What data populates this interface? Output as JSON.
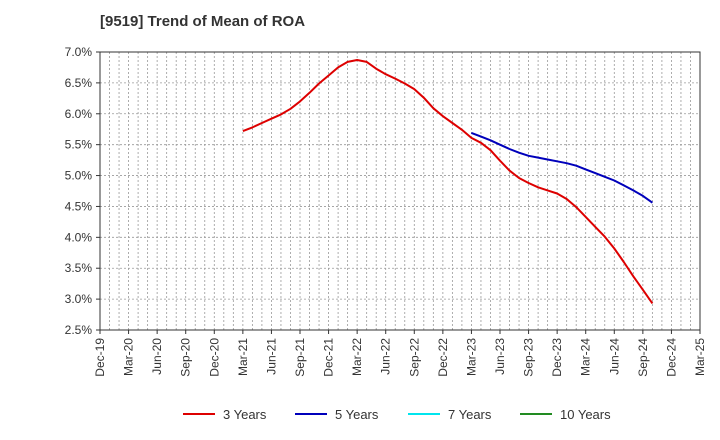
{
  "chart_data": {
    "type": "line",
    "title": "[9519]  Trend of Mean of ROA",
    "xlabel": "",
    "ylabel": "",
    "x_ticks": [
      "Dec-19",
      "Mar-20",
      "Jun-20",
      "Sep-20",
      "Dec-20",
      "Mar-21",
      "Jun-21",
      "Sep-21",
      "Dec-21",
      "Mar-22",
      "Jun-22",
      "Sep-22",
      "Dec-22",
      "Mar-23",
      "Jun-23",
      "Sep-23",
      "Dec-23",
      "Mar-24",
      "Jun-24",
      "Sep-24",
      "Dec-24",
      "Mar-25"
    ],
    "y_ticks": [
      "2.5%",
      "3.0%",
      "3.5%",
      "4.0%",
      "4.5%",
      "5.0%",
      "5.5%",
      "6.0%",
      "6.5%",
      "7.0%"
    ],
    "ylim": [
      2.5,
      7.0
    ],
    "grid": true,
    "legend_position": "bottom",
    "colors": {
      "3 Years": "#dd0000",
      "5 Years": "#0000bb",
      "7 Years": "#00e5ee",
      "10 Years": "#228b22"
    },
    "series": [
      {
        "name": "3 Years",
        "color": "#dd0000",
        "points": [
          [
            "Mar-21",
            5.72
          ],
          [
            "Apr-21",
            5.78
          ],
          [
            "May-21",
            5.85
          ],
          [
            "Jun-21",
            5.92
          ],
          [
            "Jul-21",
            5.99
          ],
          [
            "Aug-21",
            6.08
          ],
          [
            "Sep-21",
            6.2
          ],
          [
            "Oct-21",
            6.34
          ],
          [
            "Nov-21",
            6.49
          ],
          [
            "Dec-21",
            6.62
          ],
          [
            "Jan-22",
            6.75
          ],
          [
            "Feb-22",
            6.84
          ],
          [
            "Mar-22",
            6.87
          ],
          [
            "Apr-22",
            6.84
          ],
          [
            "May-22",
            6.73
          ],
          [
            "Jun-22",
            6.64
          ],
          [
            "Jul-22",
            6.57
          ],
          [
            "Aug-22",
            6.49
          ],
          [
            "Sep-22",
            6.4
          ],
          [
            "Oct-22",
            6.26
          ],
          [
            "Nov-22",
            6.09
          ],
          [
            "Dec-22",
            5.96
          ],
          [
            "Jan-23",
            5.85
          ],
          [
            "Feb-23",
            5.74
          ],
          [
            "Mar-23",
            5.61
          ],
          [
            "Apr-23",
            5.53
          ],
          [
            "May-23",
            5.41
          ],
          [
            "Jun-23",
            5.24
          ],
          [
            "Jul-23",
            5.08
          ],
          [
            "Aug-23",
            4.96
          ],
          [
            "Sep-23",
            4.88
          ],
          [
            "Oct-23",
            4.81
          ],
          [
            "Nov-23",
            4.76
          ],
          [
            "Dec-23",
            4.71
          ],
          [
            "Jan-24",
            4.62
          ],
          [
            "Feb-24",
            4.49
          ],
          [
            "Mar-24",
            4.33
          ],
          [
            "Apr-24",
            4.17
          ],
          [
            "May-24",
            4.01
          ],
          [
            "Jun-24",
            3.82
          ],
          [
            "Jul-24",
            3.6
          ],
          [
            "Aug-24",
            3.37
          ],
          [
            "Sep-24",
            3.15
          ],
          [
            "Oct-24",
            2.93
          ]
        ]
      },
      {
        "name": "5 Years",
        "color": "#0000bb",
        "points": [
          [
            "Mar-23",
            5.69
          ],
          [
            "Apr-23",
            5.63
          ],
          [
            "May-23",
            5.57
          ],
          [
            "Jun-23",
            5.5
          ],
          [
            "Jul-23",
            5.43
          ],
          [
            "Aug-23",
            5.37
          ],
          [
            "Sep-23",
            5.32
          ],
          [
            "Oct-23",
            5.29
          ],
          [
            "Nov-23",
            5.26
          ],
          [
            "Dec-23",
            5.23
          ],
          [
            "Jan-24",
            5.2
          ],
          [
            "Feb-24",
            5.16
          ],
          [
            "Mar-24",
            5.1
          ],
          [
            "Apr-24",
            5.04
          ],
          [
            "May-24",
            4.98
          ],
          [
            "Jun-24",
            4.92
          ],
          [
            "Jul-24",
            4.84
          ],
          [
            "Aug-24",
            4.76
          ],
          [
            "Sep-24",
            4.67
          ],
          [
            "Oct-24",
            4.56
          ]
        ]
      },
      {
        "name": "7 Years",
        "color": "#00e5ee",
        "points": []
      },
      {
        "name": "10 Years",
        "color": "#228b22",
        "points": []
      }
    ]
  }
}
